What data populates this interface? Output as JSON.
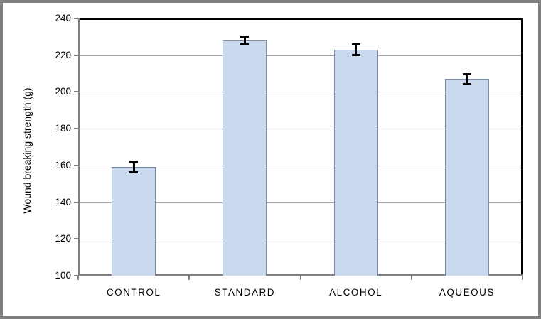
{
  "chart_data": {
    "type": "bar",
    "title": "",
    "categories": [
      "CONTROL",
      "STANDARD",
      "ALCOHOL",
      "AQUEOUS"
    ],
    "values": [
      159,
      228,
      223,
      207
    ],
    "error_bars": [
      3,
      2.5,
      3,
      2.8
    ],
    "xlabel": "",
    "ylabel": "Wound breaking strength (g)",
    "ylim": [
      100,
      240
    ],
    "ytick_interval": 20,
    "yticks": [
      100,
      120,
      140,
      160,
      180,
      200,
      220,
      240
    ],
    "grid": "horizontal-major",
    "legend_position": "none"
  },
  "colors": {
    "bar_fill": "#cad9ee",
    "bar_border": "#7a8aa0",
    "gridline": "#a3a3a3",
    "axis": "#808080",
    "plot_border": "#000000",
    "error_bar": "#000000",
    "frame_border": "#7f7f7f",
    "background": "#ffffff",
    "text": "#000000"
  }
}
